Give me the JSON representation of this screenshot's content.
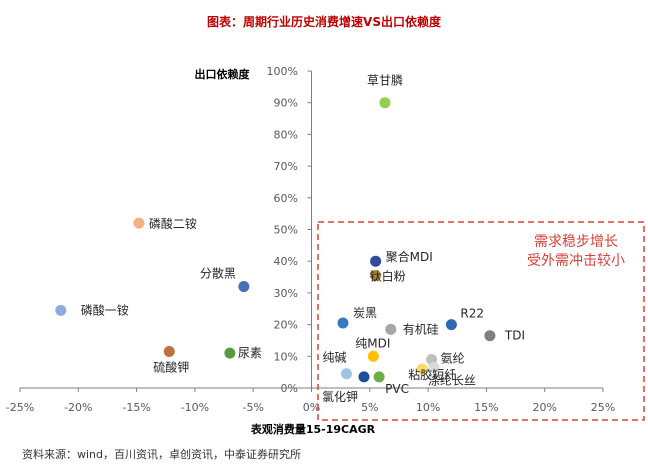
{
  "figure_title": "图表：周期行业历史消费增速VS出口依赖度",
  "source_note": "资料来源：wind，百川资讯，卓创资讯，中泰证券研究所",
  "annotation": {
    "line1": "需求稳步增长",
    "line2": "受外需冲击较小"
  },
  "colors": {
    "accent_red": "#d9413a",
    "axis": "#7f7f7f",
    "tick_text": "#595959"
  },
  "chart_data": {
    "type": "scatter",
    "title": "图表：周期行业历史消费增速VS出口依赖度",
    "xlabel": "表观消费量15-19CAGR",
    "ylabel": "出口依赖度",
    "xlim": [
      -25,
      25
    ],
    "ylim": [
      0,
      100
    ],
    "x_unit": "%",
    "y_unit": "%",
    "x_ticks": [
      "-25%",
      "-20%",
      "-15%",
      "-10%",
      "-5%",
      "0%",
      "5%",
      "10%",
      "15%",
      "20%",
      "25%"
    ],
    "y_ticks": [
      "0%",
      "10%",
      "20%",
      "30%",
      "40%",
      "50%",
      "60%",
      "70%",
      "80%",
      "90%",
      "100%"
    ],
    "grid": false,
    "points": [
      {
        "label": "草甘膦",
        "x": 6.3,
        "y": 90,
        "color": "#92d050"
      },
      {
        "label": "磷酸二铵",
        "x": -14.8,
        "y": 52,
        "color": "#f4b183"
      },
      {
        "label": "磷酸一铵",
        "x": -21.5,
        "y": 24.5,
        "color": "#8faadc"
      },
      {
        "label": "分散黑",
        "x": -5.8,
        "y": 32,
        "color": "#4a6fb5"
      },
      {
        "label": "硫酸钾",
        "x": -12.2,
        "y": 11.5,
        "color": "#c0703c"
      },
      {
        "label": "尿素",
        "x": -7,
        "y": 11,
        "color": "#5a9a3c"
      },
      {
        "label": "聚合MDI",
        "x": 5.5,
        "y": 40,
        "color": "#2f4d9c"
      },
      {
        "label": "钛白粉",
        "x": 5.5,
        "y": 35.5,
        "color": "#b08a28"
      },
      {
        "label": "炭黑",
        "x": 2.7,
        "y": 20.5,
        "color": "#3a78c0"
      },
      {
        "label": "有机硅",
        "x": 6.8,
        "y": 18.5,
        "color": "#a6a6a6"
      },
      {
        "label": "R22",
        "x": 12,
        "y": 20,
        "color": "#2f68b0"
      },
      {
        "label": "TDI",
        "x": 15.3,
        "y": 16.5,
        "color": "#7f7f7f"
      },
      {
        "label": "纯MDI",
        "x": 5.3,
        "y": 10,
        "color": "#ffc000"
      },
      {
        "label": "纯碱",
        "x": 3,
        "y": 4.5,
        "color": "#9dc3e6"
      },
      {
        "label": "氯化钾",
        "x": 4.5,
        "y": 3.5,
        "color": "#1f4e9c"
      },
      {
        "label": "PVC",
        "x": 5.8,
        "y": 3.5,
        "color": "#70ad47"
      },
      {
        "label": "氨纶",
        "x": 10.3,
        "y": 9,
        "color": "#bfbfbf"
      },
      {
        "label": "粘胶短纤",
        "x": 9.5,
        "y": 6,
        "color": "#ffd966"
      },
      {
        "label": "涤纶长丝",
        "x": 10.5,
        "y": 6.5,
        "color": "#d9d9d9"
      }
    ]
  }
}
